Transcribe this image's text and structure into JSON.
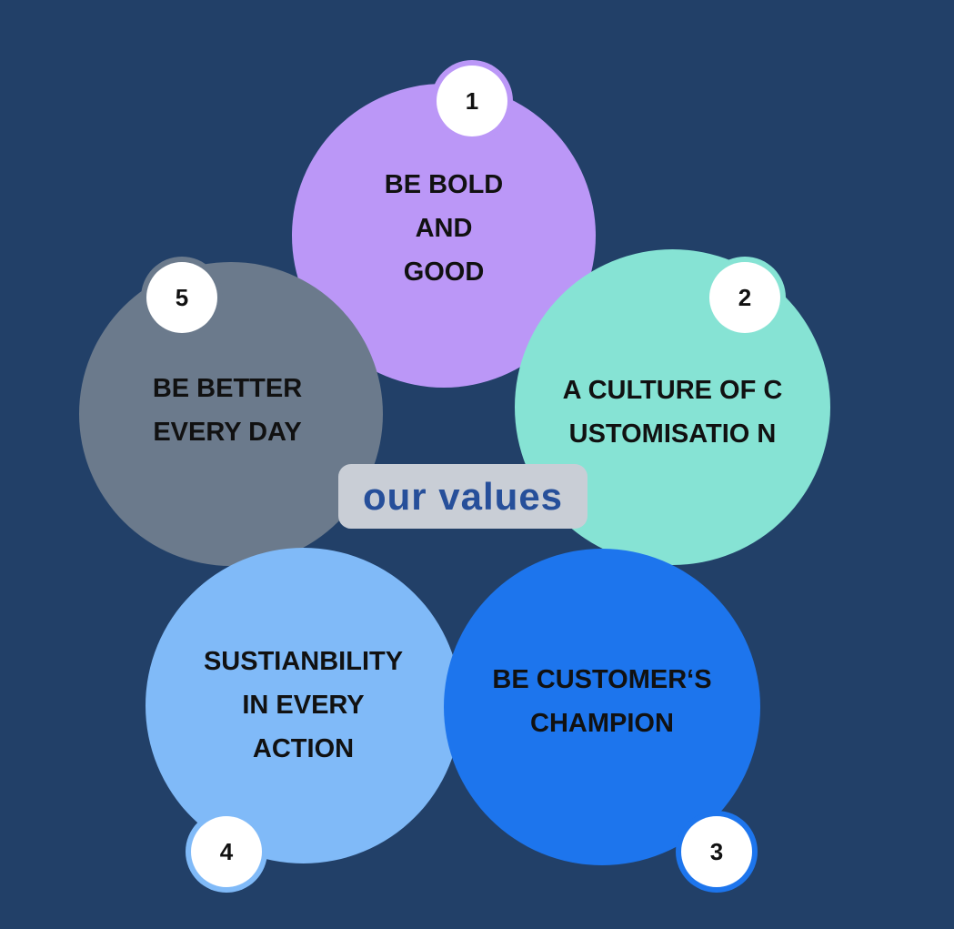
{
  "title": "our values",
  "colors": {
    "background": "#224068",
    "value_1": "#bb97f7",
    "value_2": "#86e3d4",
    "value_3": "#1d75ed",
    "value_4": "#80baf8",
    "value_5": "#6b7a8c",
    "title_text": "#264f9a",
    "title_box": "#c9ced6"
  },
  "values": [
    {
      "number": "1",
      "text": "BE BOLD\nAND\nGOOD"
    },
    {
      "number": "2",
      "text": "A CULTURE OF CUSTOMISATIO N"
    },
    {
      "number": "3",
      "text": "BE CUSTOMER‘S\nCHAMPION"
    },
    {
      "number": "4",
      "text": "SUSTIANBILITY\nIN EVERY\nACTION"
    },
    {
      "number": "5",
      "text": "BE BETTER\nEVERY DAY"
    }
  ]
}
